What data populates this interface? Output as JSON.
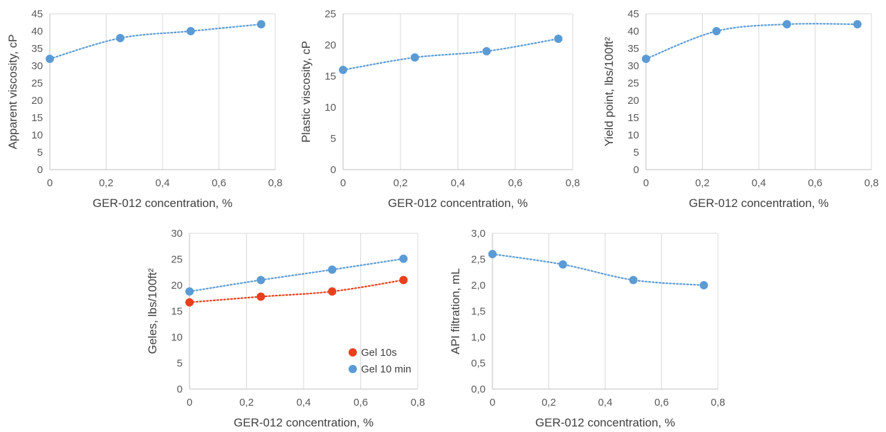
{
  "colors": {
    "blue": "#5b9bd5",
    "red": "#e8401c"
  },
  "chart_data": [
    {
      "type": "scatter",
      "xlabel": "GER-012 concentration, %",
      "ylabel": "Apparent viscosity, cP",
      "xlim": [
        0,
        0.8
      ],
      "ylim": [
        0,
        45
      ],
      "xticks": [
        0,
        0.2,
        0.4,
        0.6,
        0.8
      ],
      "xtick_labels": [
        "0",
        "0,2",
        "0,4",
        "0,6",
        "0,8"
      ],
      "yticks": [
        0,
        5,
        10,
        15,
        20,
        25,
        30,
        35,
        40,
        45
      ],
      "ytick_labels": [
        "0",
        "5",
        "10",
        "15",
        "20",
        "25",
        "30",
        "35",
        "40",
        "45"
      ],
      "grid": "vertical",
      "series": [
        {
          "x": [
            0,
            0.25,
            0.5,
            0.75
          ],
          "values": [
            32,
            38,
            40,
            42
          ],
          "color": "#5b9bd5"
        }
      ]
    },
    {
      "type": "scatter",
      "xlabel": "GER-012 concentration, %",
      "ylabel": "Plastic viscosity, cP",
      "xlim": [
        0,
        0.8
      ],
      "ylim": [
        0,
        25
      ],
      "xticks": [
        0,
        0.2,
        0.4,
        0.6,
        0.8
      ],
      "xtick_labels": [
        "0",
        "0,2",
        "0,4",
        "0,6",
        "0,8"
      ],
      "yticks": [
        0,
        5,
        10,
        15,
        20,
        25
      ],
      "ytick_labels": [
        "0",
        "5",
        "10",
        "15",
        "20",
        "25"
      ],
      "grid": "vertical",
      "series": [
        {
          "x": [
            0,
            0.25,
            0.5,
            0.75
          ],
          "values": [
            16,
            18,
            19,
            21
          ],
          "color": "#5b9bd5"
        }
      ]
    },
    {
      "type": "scatter",
      "xlabel": "GER-012 concentration, %",
      "ylabel": "Yield point, lbs/100ft²",
      "xlim": [
        0,
        0.8
      ],
      "ylim": [
        0,
        45
      ],
      "xticks": [
        0,
        0.2,
        0.4,
        0.6,
        0.8
      ],
      "xtick_labels": [
        "0",
        "0,2",
        "0,4",
        "0,6",
        "0,8"
      ],
      "yticks": [
        0,
        5,
        10,
        15,
        20,
        25,
        30,
        35,
        40,
        45
      ],
      "ytick_labels": [
        "0",
        "5",
        "10",
        "15",
        "20",
        "25",
        "30",
        "35",
        "40",
        "45"
      ],
      "grid": "vertical",
      "series": [
        {
          "x": [
            0,
            0.25,
            0.5,
            0.75
          ],
          "values": [
            32,
            40,
            42,
            42
          ],
          "color": "#5b9bd5"
        }
      ]
    },
    {
      "type": "scatter",
      "xlabel": "GER-012 concentration, %",
      "ylabel": "Geles, lbs/100ft²",
      "xlim": [
        0,
        0.8
      ],
      "ylim": [
        0,
        30
      ],
      "xticks": [
        0,
        0.2,
        0.4,
        0.6,
        0.8
      ],
      "xtick_labels": [
        "0",
        "0,2",
        "0,4",
        "0,6",
        "0,8"
      ],
      "yticks": [
        0,
        5,
        10,
        15,
        20,
        25,
        30
      ],
      "ytick_labels": [
        "0",
        "5",
        "10",
        "15",
        "20",
        "25",
        "30"
      ],
      "grid": "vertical",
      "legend": "bottom-right",
      "series": [
        {
          "name": "Gel 10s",
          "x": [
            0,
            0.25,
            0.5,
            0.75
          ],
          "values": [
            16.7,
            17.8,
            18.8,
            21
          ],
          "color": "#e8401c"
        },
        {
          "name": "Gel 10 min",
          "x": [
            0,
            0.25,
            0.5,
            0.75
          ],
          "values": [
            18.8,
            21,
            23,
            25.1
          ],
          "color": "#5b9bd5"
        }
      ]
    },
    {
      "type": "scatter",
      "xlabel": "GER-012 concentration, %",
      "ylabel": "API filtration, mL",
      "xlim": [
        0,
        0.8
      ],
      "ylim": [
        0,
        3
      ],
      "xticks": [
        0,
        0.2,
        0.4,
        0.6,
        0.8
      ],
      "xtick_labels": [
        "0",
        "0,2",
        "0,4",
        "0,6",
        "0,8"
      ],
      "yticks": [
        0,
        0.5,
        1,
        1.5,
        2,
        2.5,
        3
      ],
      "ytick_labels": [
        "0,0",
        "0,5",
        "1,0",
        "1,5",
        "2,0",
        "2,5",
        "3,0"
      ],
      "grid": "vertical",
      "series": [
        {
          "x": [
            0,
            0.25,
            0.5,
            0.75
          ],
          "values": [
            2.6,
            2.4,
            2.1,
            2.0
          ],
          "color": "#5b9bd5"
        }
      ]
    }
  ]
}
